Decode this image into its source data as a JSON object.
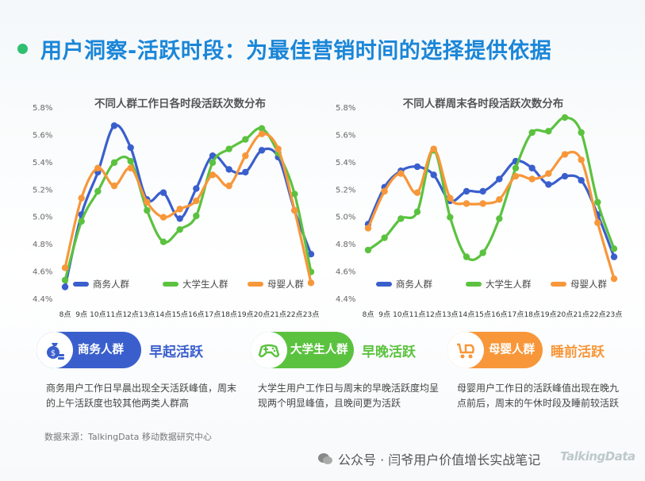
{
  "page": {
    "title": "用户洞察-活跃时段：为最佳营销时间的选择提供依据",
    "source": "数据来源：TalkingData 移动数据研究中心",
    "watermark": "公众号 · 闫爷用户价值增长实战笔记",
    "logo_text": "TalkingData"
  },
  "colors": {
    "business": "#3a5fcd",
    "student": "#5bc23f",
    "mother": "#f7973a",
    "title": "#1a86d8",
    "dot": "#2fbf71"
  },
  "chart_data": [
    {
      "type": "line",
      "title": "不同人群工作日各时段活跃次数分布",
      "categories": [
        "8点",
        "9点",
        "10点",
        "11点",
        "12点",
        "13点",
        "14点",
        "15点",
        "16点",
        "17点",
        "18点",
        "19点",
        "20点",
        "21点",
        "22点",
        "23点"
      ],
      "ylim": [
        4.4,
        5.8
      ],
      "yticks": [
        "4.4%",
        "4.6%",
        "4.8%",
        "5.0%",
        "5.2%",
        "5.4%",
        "5.6%",
        "5.8%"
      ],
      "legend_position": "bottom",
      "series": [
        {
          "name": "商务人群",
          "color": "#3a5fcd",
          "values": [
            4.49,
            5.02,
            5.33,
            5.67,
            5.51,
            5.13,
            5.18,
            4.99,
            5.21,
            5.45,
            5.35,
            5.33,
            5.49,
            5.44,
            5.05,
            4.73
          ]
        },
        {
          "name": "大学生人群",
          "color": "#5bc23f",
          "values": [
            4.54,
            4.97,
            5.19,
            5.4,
            5.41,
            5.05,
            4.82,
            4.91,
            5.01,
            5.4,
            5.5,
            5.57,
            5.65,
            5.47,
            5.17,
            4.6
          ]
        },
        {
          "name": "母婴人群",
          "color": "#f7973a",
          "values": [
            4.63,
            5.14,
            5.36,
            5.23,
            5.36,
            5.11,
            5.0,
            5.06,
            5.12,
            5.31,
            5.23,
            5.45,
            5.61,
            5.5,
            5.05,
            4.52
          ]
        }
      ]
    },
    {
      "type": "line",
      "title": "不同人群周末各时段活跃次数分布",
      "categories": [
        "8点",
        "9点",
        "10点",
        "11点",
        "12点",
        "13点",
        "14点",
        "15点",
        "16点",
        "17点",
        "18点",
        "19点",
        "20点",
        "21点",
        "22点",
        "23点"
      ],
      "ylim": [
        4.4,
        5.8
      ],
      "yticks": [
        "4.4%",
        "4.6%",
        "4.8%",
        "5.0%",
        "5.2%",
        "5.4%",
        "5.6%",
        "5.8%"
      ],
      "legend_position": "bottom",
      "series": [
        {
          "name": "商务人群",
          "color": "#3a5fcd",
          "values": [
            4.95,
            5.22,
            5.34,
            5.37,
            5.31,
            5.12,
            5.19,
            5.19,
            5.28,
            5.41,
            5.36,
            5.24,
            5.3,
            5.27,
            5.02,
            4.71
          ]
        },
        {
          "name": "大学生人群",
          "color": "#5bc23f",
          "values": [
            4.76,
            4.85,
            4.99,
            5.04,
            5.49,
            5.0,
            4.71,
            4.74,
            4.99,
            5.36,
            5.62,
            5.63,
            5.73,
            5.62,
            5.11,
            4.77
          ]
        },
        {
          "name": "母婴人群",
          "color": "#f7973a",
          "values": [
            4.92,
            5.19,
            5.32,
            5.18,
            5.5,
            5.14,
            5.1,
            5.1,
            5.13,
            5.3,
            5.28,
            5.32,
            5.46,
            5.42,
            4.96,
            4.55
          ]
        }
      ]
    }
  ],
  "cards": [
    {
      "label": "商务人群",
      "tag": "早起活跃",
      "desc": "商务用户工作日早晨出现全天活跃峰值，周末的上午活跃度也较其他两类人群高"
    },
    {
      "label": "大学生人群",
      "tag": "早晚活跃",
      "desc": "大学生用户工作日与周末的早晚活跃度均呈现两个明显峰值，且晚间更为活跃"
    },
    {
      "label": "母婴人群",
      "tag": "睡前活跃",
      "desc": "母婴用户工作日的活跃峰值出现在晚九点前后，周末的午休时段及睡前较活跃"
    }
  ]
}
